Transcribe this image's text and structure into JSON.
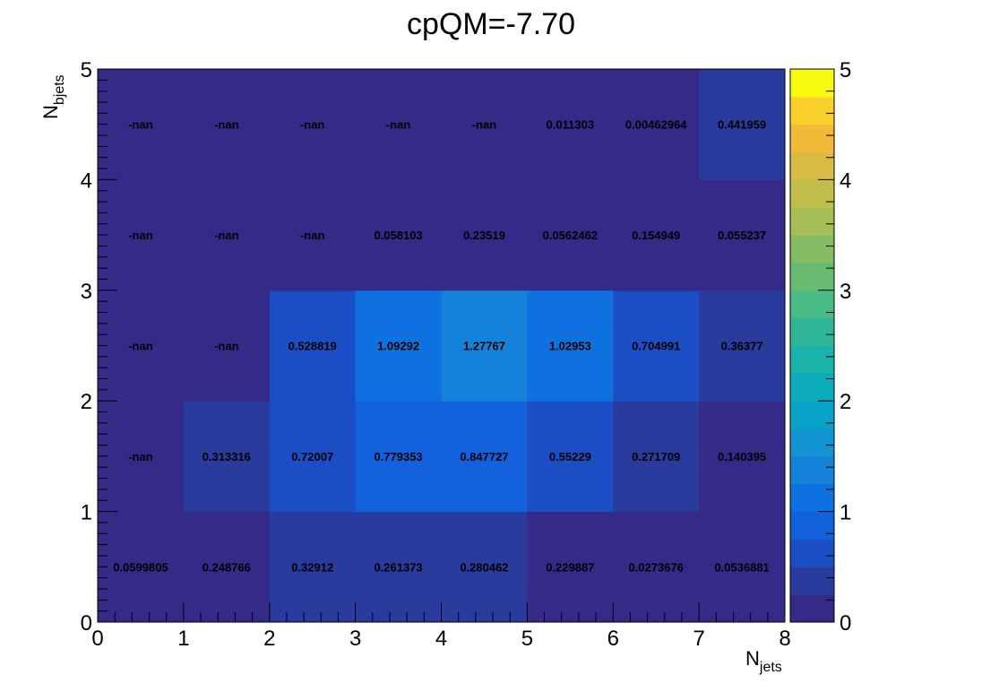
{
  "chart_data": {
    "type": "heatmap",
    "title": "cpQM=-7.70",
    "xlabel": {
      "main": "N",
      "sub": "jets"
    },
    "ylabel": {
      "main": "N",
      "sub": "bjets"
    },
    "xlim": [
      0,
      8
    ],
    "ylim": [
      0,
      5
    ],
    "zlim": [
      0,
      5
    ],
    "x_ticks": [
      "0",
      "1",
      "2",
      "3",
      "4",
      "5",
      "6",
      "7",
      "8"
    ],
    "y_ticks": [
      "0",
      "1",
      "2",
      "3",
      "4",
      "5"
    ],
    "z_ticks": [
      "0",
      "1",
      "2",
      "3",
      "4",
      "5"
    ],
    "colorbar_levels": 20,
    "grid": false,
    "cells": [
      [
        0.0599805,
        0.248766,
        0.32912,
        0.261373,
        0.280462,
        0.229887,
        0.0273676,
        0.0536881
      ],
      [
        null,
        0.313316,
        0.72007,
        0.779353,
        0.847727,
        0.55229,
        0.271709,
        0.140395
      ],
      [
        null,
        null,
        0.528819,
        1.09292,
        1.27767,
        1.02953,
        0.704991,
        0.36377
      ],
      [
        null,
        null,
        null,
        0.058103,
        0.23519,
        0.0562462,
        0.154949,
        0.055237
      ],
      [
        null,
        null,
        null,
        null,
        null,
        0.011303,
        0.00462964,
        0.441959
      ]
    ],
    "cell_labels": [
      [
        "0.0599805",
        "0.248766",
        "0.32912",
        "0.261373",
        "0.280462",
        "0.229887",
        "0.0273676",
        "0.0536881"
      ],
      [
        "-nan",
        "0.313316",
        "0.72007",
        "0.779353",
        "0.847727",
        "0.55229",
        "0.271709",
        "0.140395"
      ],
      [
        "-nan",
        "-nan",
        "0.528819",
        "1.09292",
        "1.27767",
        "1.02953",
        "0.704991",
        "0.36377"
      ],
      [
        "-nan",
        "-nan",
        "-nan",
        "0.058103",
        "0.23519",
        "0.0562462",
        "0.154949",
        "0.055237"
      ],
      [
        "-nan",
        "-nan",
        "-nan",
        "-nan",
        "-nan",
        "0.011303",
        "0.00462964",
        "0.441959"
      ]
    ],
    "palette": [
      "#352a87",
      "#2a3b9e",
      "#1b4dc4",
      "#1360dd",
      "#0f70e0",
      "#1482d8",
      "#1393d2",
      "#08a2c8",
      "#0cacbc",
      "#1bb2aa",
      "#2eb797",
      "#49bb84",
      "#68bc71",
      "#87bd62",
      "#a5be56",
      "#c0bd4b",
      "#d8bb42",
      "#f1ba39",
      "#f9d02c",
      "#f9fb0e"
    ],
    "background": "#352a87"
  }
}
